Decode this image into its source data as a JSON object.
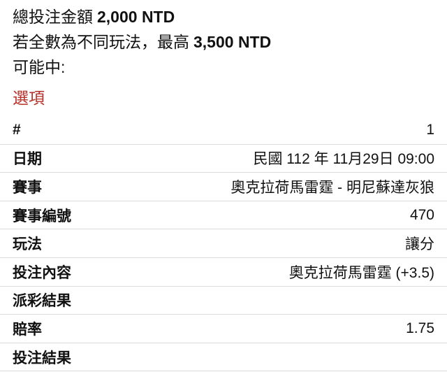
{
  "summary": {
    "total_label": "總投注金額",
    "total_amount": "2,000 NTD",
    "max_label": "若全數為不同玩法，最高",
    "max_amount": "3,500 NTD",
    "possible_label": "可能中:"
  },
  "section_title": "選項",
  "colors": {
    "accent_red": "#b5322a",
    "divider": "#dbdbdb",
    "text": "#111111",
    "background": "#ffffff"
  },
  "table": {
    "rows": [
      {
        "label": "#",
        "value": "1"
      },
      {
        "label": "日期",
        "value": "民國 112 年 11月29日 09:00"
      },
      {
        "label": "賽事",
        "value": "奧克拉荷馬雷霆 - 明尼蘇達灰狼"
      },
      {
        "label": "賽事編號",
        "value": "470"
      },
      {
        "label": "玩法",
        "value": "讓分"
      },
      {
        "label": "投注內容",
        "value": "奧克拉荷馬雷霆 (+3.5)"
      },
      {
        "label": "派彩結果",
        "value": ""
      },
      {
        "label": "賠率",
        "value": "1.75"
      },
      {
        "label": "投注結果",
        "value": ""
      }
    ]
  }
}
